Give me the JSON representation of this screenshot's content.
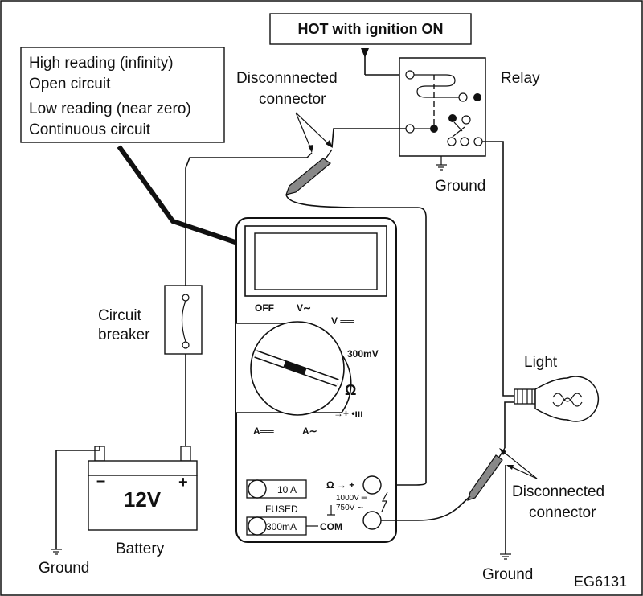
{
  "info_box": {
    "line1": "High reading (infinity)",
    "line2": "Open circuit",
    "line3": "Low reading (near zero)",
    "line4": "Continuous circuit"
  },
  "hot_label": "HOT with ignition ON",
  "relay_label": "Relay",
  "relay_ground_label": "Ground",
  "top_connector_label_1": "Disconnnected",
  "top_connector_label_2": "connector",
  "breaker_label_1": "Circuit",
  "breaker_label_2": "breaker",
  "battery": {
    "voltage": "12V",
    "minus": "–",
    "plus": "+",
    "label": "Battery",
    "ground_label": "Ground"
  },
  "light_label": "Light",
  "bottom_connector_label_1": "Disconnected",
  "bottom_connector_label_2": "connector",
  "light_ground_label": "Ground",
  "meter": {
    "off": "OFF",
    "v_ac": "V∼",
    "v_dc": "V ══",
    "mv": "300mV",
    "ohm": "Ω",
    "diode": "→+ •ııı",
    "a_dc": "A══",
    "a_ac": "A∼",
    "jack_10a": "10 A",
    "fused": "FUSED",
    "jack_300ma": "300mA",
    "com": "COM",
    "jack_plus": "Ω → +",
    "max_dc": "1000V ═",
    "max_ac": "750V ∼"
  },
  "figure_id": "EG6131"
}
